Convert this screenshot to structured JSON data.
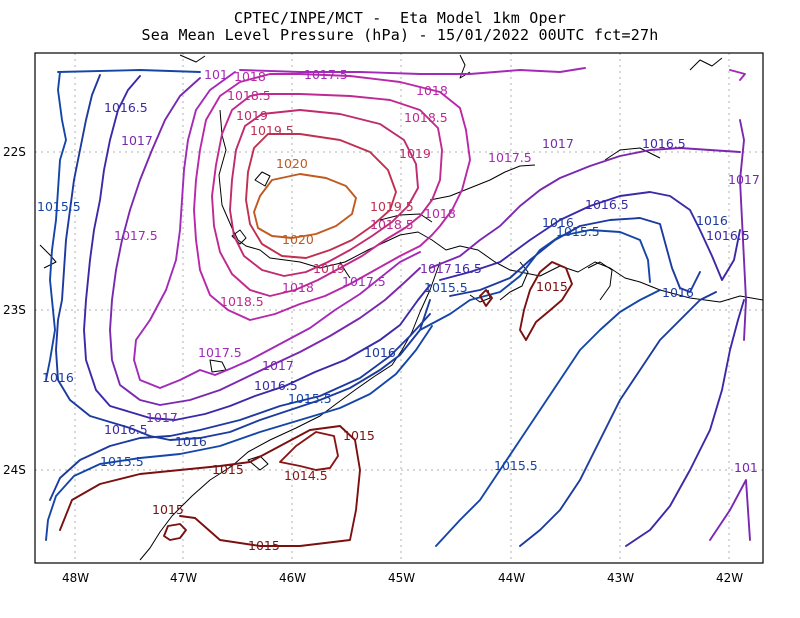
{
  "header": {
    "title_line1": "CPTEC/INPE/MCT -  Eta Model 1km Oper",
    "title_line2": "Sea Mean Level Pressure (hPa) - 15/01/2022 00UTC fct=27h"
  },
  "axes": {
    "lon_labels": [
      "48W",
      "47W",
      "46W",
      "45W",
      "44W",
      "43W",
      "42W"
    ],
    "lat_labels": [
      "22S",
      "23S",
      "24S"
    ]
  },
  "colors": {
    "1014.5": "#8a1414",
    "1015": "#7a1010",
    "1015.5": "#1446a8",
    "1016": "#1c3aa0",
    "1016.5": "#3a2aa8",
    "1017": "#7a28b0",
    "1017.5": "#a22ab8",
    "1018": "#b828a8",
    "1018.5": "#c02a90",
    "1019": "#c02a6e",
    "1019.5": "#c03050",
    "1020": "#c05a20"
  },
  "contour_labels": [
    {
      "id": "l01",
      "text": "1017.5",
      "level": "1017.5"
    },
    {
      "id": "l02",
      "text": "1018",
      "level": "1018"
    },
    {
      "id": "l03",
      "text": "101",
      "level": "1017.5"
    },
    {
      "id": "l04",
      "text": "1018",
      "level": "1018"
    },
    {
      "id": "l05",
      "text": "1018.5",
      "level": "1018.5"
    },
    {
      "id": "l06",
      "text": "1018.5",
      "level": "1018.5"
    },
    {
      "id": "l07",
      "text": "1019",
      "level": "1019"
    },
    {
      "id": "l08",
      "text": "1019.5",
      "level": "1019.5"
    },
    {
      "id": "l09",
      "text": "1016.5",
      "level": "1016.5"
    },
    {
      "id": "l10",
      "text": "1017",
      "level": "1017"
    },
    {
      "id": "l11",
      "text": "1020",
      "level": "1020"
    },
    {
      "id": "l12",
      "text": "1019",
      "level": "1019"
    },
    {
      "id": "l13",
      "text": "1017.5",
      "level": "1017.5"
    },
    {
      "id": "l14",
      "text": "1017",
      "level": "1017"
    },
    {
      "id": "l15",
      "text": "1016.5",
      "level": "1016.5"
    },
    {
      "id": "l16",
      "text": "1017",
      "level": "1017"
    },
    {
      "id": "l17",
      "text": "1015.5",
      "level": "1015.5"
    },
    {
      "id": "l18",
      "text": "1019.5",
      "level": "1019.5"
    },
    {
      "id": "l19",
      "text": "1018",
      "level": "1018"
    },
    {
      "id": "l20",
      "text": "1018.5",
      "level": "1018.5"
    },
    {
      "id": "l21",
      "text": "1016.5",
      "level": "1016.5"
    },
    {
      "id": "l22",
      "text": "1016",
      "level": "1016"
    },
    {
      "id": "l23",
      "text": "1015.5",
      "level": "1015.5"
    },
    {
      "id": "l24",
      "text": "1016",
      "level": "1016"
    },
    {
      "id": "l25",
      "text": "1016.5",
      "level": "1016.5"
    },
    {
      "id": "l26",
      "text": "1020",
      "level": "1020"
    },
    {
      "id": "l27",
      "text": "1017.5",
      "level": "1017.5"
    },
    {
      "id": "l28",
      "text": "1019",
      "level": "1019"
    },
    {
      "id": "l29",
      "text": "1017.5",
      "level": "1017.5"
    },
    {
      "id": "l30",
      "text": "1018",
      "level": "1018"
    },
    {
      "id": "l31",
      "text": "1017",
      "level": "1017"
    },
    {
      "id": "l32",
      "text": "16.5",
      "level": "1016.5"
    },
    {
      "id": "l33",
      "text": "1015",
      "level": "1015"
    },
    {
      "id": "l34",
      "text": "1015.5",
      "level": "1015.5"
    },
    {
      "id": "l35",
      "text": "1016",
      "level": "1016"
    },
    {
      "id": "l36",
      "text": "1018.5",
      "level": "1018.5"
    },
    {
      "id": "l37",
      "text": "1017.5",
      "level": "1017.5"
    },
    {
      "id": "l38",
      "text": "1016",
      "level": "1016"
    },
    {
      "id": "l39",
      "text": "1017",
      "level": "1017"
    },
    {
      "id": "l40",
      "text": "1016.5",
      "level": "1016.5"
    },
    {
      "id": "l41",
      "text": "1016",
      "level": "1016"
    },
    {
      "id": "l42",
      "text": "1015.5",
      "level": "1015.5"
    },
    {
      "id": "l43",
      "text": "1016",
      "level": "1016"
    },
    {
      "id": "l44",
      "text": "1017",
      "level": "1017"
    },
    {
      "id": "l45",
      "text": "1016.5",
      "level": "1016.5"
    },
    {
      "id": "l46",
      "text": "1015.5",
      "level": "1015.5"
    },
    {
      "id": "l47",
      "text": "1015",
      "level": "1015"
    },
    {
      "id": "l48",
      "text": "1014.5",
      "level": "1014.5"
    },
    {
      "id": "l49",
      "text": "1015",
      "level": "1015"
    },
    {
      "id": "l50",
      "text": "1015",
      "level": "1015"
    },
    {
      "id": "l51",
      "text": "1015",
      "level": "1015"
    },
    {
      "id": "l52",
      "text": "1015.5",
      "level": "1015.5"
    },
    {
      "id": "l53",
      "text": "101",
      "level": "1017"
    }
  ]
}
